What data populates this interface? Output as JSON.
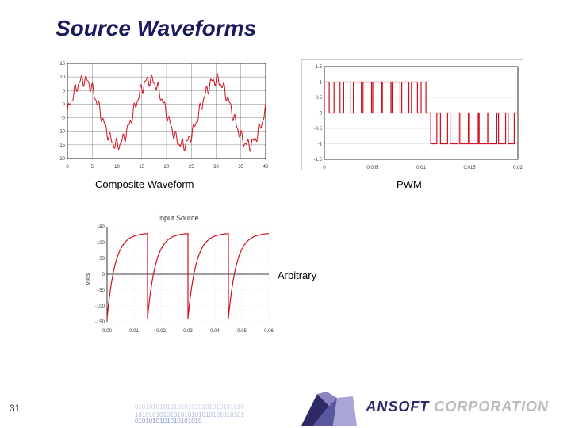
{
  "slide": {
    "title": "Source Waveforms",
    "page_number": "31"
  },
  "captions": {
    "composite": "Composite Waveform",
    "pwm": "PWM",
    "arbitrary": "Arbitrary",
    "input_source": "Input Source"
  },
  "footer": {
    "brand_solid": "ANSOFT",
    "brand_outline": " CORPORATION"
  },
  "charts": {
    "composite": {
      "type": "line",
      "xlim": [
        0,
        40
      ],
      "ylim": [
        -20,
        15
      ],
      "xticks": [
        0,
        5,
        10,
        15,
        20,
        25,
        30,
        35,
        40
      ],
      "yticks": [
        -20,
        -15,
        -10,
        -5,
        0,
        5,
        10,
        15
      ],
      "line_color": "#d01020",
      "line_width": 1,
      "grid_color": "#666666",
      "axis_color": "#000000",
      "bg": "#ffffff",
      "tick_fontsize": 6
    },
    "pwm": {
      "type": "line",
      "xlim": [
        0,
        0.02
      ],
      "ylim": [
        -1.5,
        1.5
      ],
      "xticks": [
        0,
        0.005,
        0.01,
        0.015,
        0.02
      ],
      "yticks": [
        -1.5,
        -1,
        -0.5,
        0,
        0.5,
        1,
        1.5
      ],
      "line_color": "#d01020",
      "line_width": 1.2,
      "grid_color": "#cccccc",
      "axis_color": "#000000",
      "border_color": "#cccccc",
      "bg": "#ffffff",
      "tick_fontsize": 6
    },
    "arbitrary": {
      "type": "line",
      "title": "Input Source",
      "xlim": [
        0,
        0.06
      ],
      "ylim": [
        -150,
        150
      ],
      "xticks": [
        0,
        0.01,
        0.02,
        0.03,
        0.04,
        0.05,
        0.06
      ],
      "yticks": [
        -150,
        -100,
        -50,
        0,
        50,
        100,
        150
      ],
      "line_color": "#d01020",
      "line_width": 1.2,
      "grid_color": "#dddddd",
      "axis_color": "#000000",
      "bg": "#ffffff",
      "tick_fontsize": 6,
      "ylabel": "volts",
      "period": 0.015,
      "n_periods": 4
    }
  },
  "colors": {
    "title": "#1a1a5e",
    "crystal_dark": "#2e2a68",
    "crystal_mid": "#5a56a0",
    "crystal_light": "#a8a6d6",
    "binary_fade": "#c8d0e8"
  }
}
